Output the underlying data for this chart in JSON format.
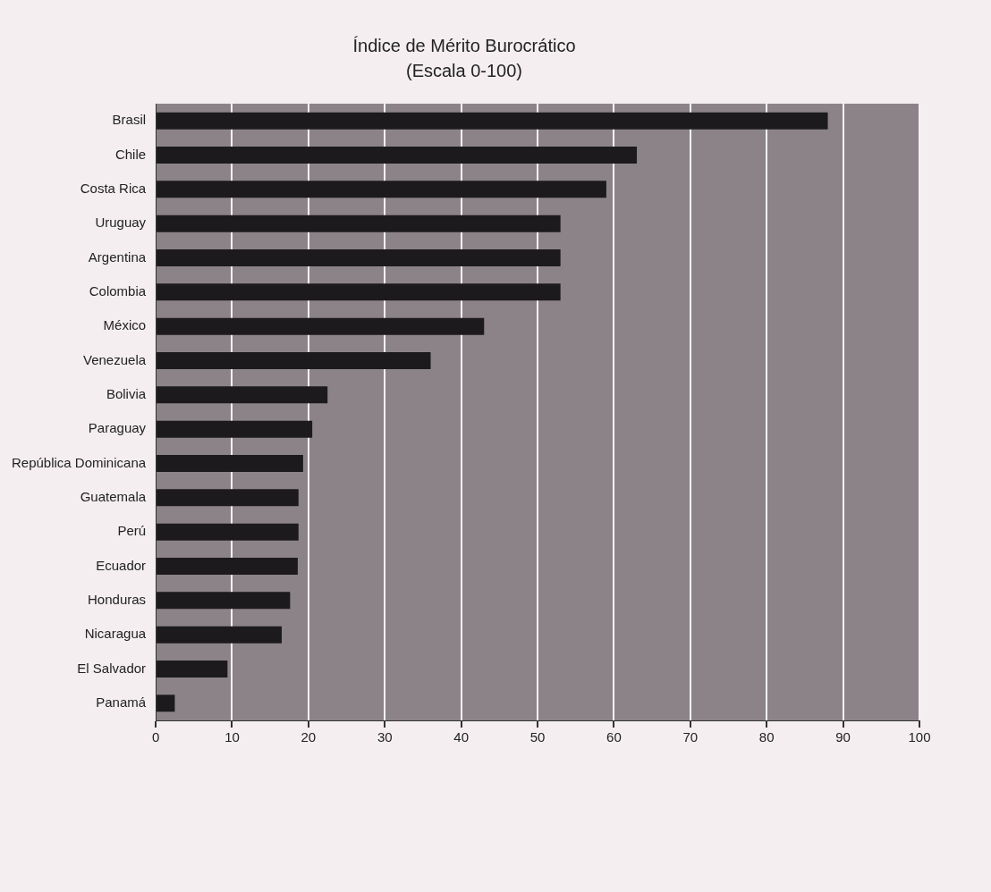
{
  "chart_data": {
    "type": "bar",
    "orientation": "horizontal",
    "title": "Índice de Mérito Burocrático",
    "subtitle": "(Escala 0-100)",
    "categories": [
      "Brasil",
      "Chile",
      "Costa Rica",
      "Uruguay",
      "Argentina",
      "Colombia",
      "México",
      "Venezuela",
      "Bolivia",
      "Paraguay",
      "República Dominicana",
      "Guatemala",
      "Perú",
      "Ecuador",
      "Honduras",
      "Nicaragua",
      "El Salvador",
      "Panamá"
    ],
    "values": [
      88,
      63,
      59,
      53,
      53,
      53,
      43,
      36,
      22.5,
      20.5,
      19.3,
      18.7,
      18.7,
      18.6,
      17.6,
      16.5,
      9.4,
      2.5
    ],
    "color": "#1c1a1c",
    "xlim": [
      0,
      100
    ],
    "xticks": [
      0,
      10,
      20,
      30,
      40,
      50,
      60,
      70,
      80,
      90,
      100
    ],
    "grid": "x"
  }
}
